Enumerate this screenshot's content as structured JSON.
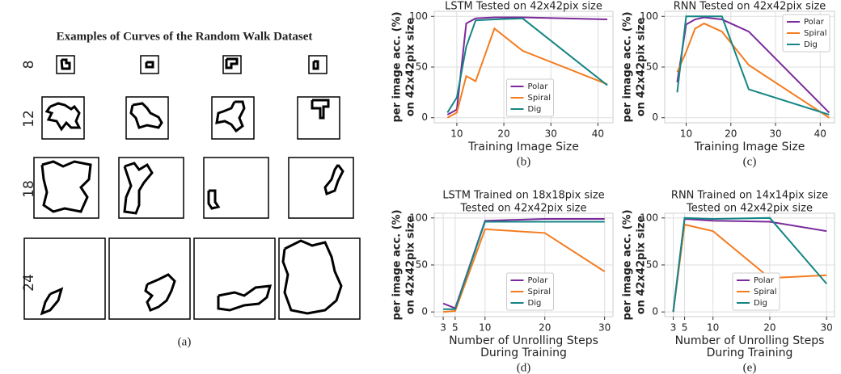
{
  "panel_a": {
    "title": "Examples of Curves of the Random Walk Dataset",
    "rows": [
      "8",
      "12",
      "18",
      "24"
    ],
    "caption": "(a)"
  },
  "chart_data": [
    {
      "type": "line",
      "title": [
        "LSTM Tested on 42x42pix size"
      ],
      "xlabel": [
        "Training Image Size"
      ],
      "ylabel": [
        "per image acc. (%)",
        "on 42x42pix size"
      ],
      "caption": "(b)",
      "x": [
        8,
        10,
        12,
        14,
        18,
        24,
        42
      ],
      "xlim": [
        5.2,
        43.2
      ],
      "xticks": [
        10,
        20,
        30,
        40
      ],
      "ylim": [
        -5,
        105
      ],
      "yticks": [
        0,
        50,
        100
      ],
      "grid": true,
      "legend": "lower center",
      "series": [
        {
          "name": "Polar",
          "color": "#7b2a9b",
          "values": [
            3,
            8,
            93,
            98,
            99,
            99,
            97
          ]
        },
        {
          "name": "Spiral",
          "color": "#f47c20",
          "values": [
            0,
            5,
            41,
            36,
            88,
            66,
            33
          ]
        },
        {
          "name": "Dig",
          "color": "#168585",
          "values": [
            5,
            20,
            70,
            96,
            97,
            98,
            32
          ]
        }
      ]
    },
    {
      "type": "line",
      "title": [
        "RNN Tested on 42x42pix size"
      ],
      "xlabel": [
        "Training Image Size"
      ],
      "ylabel": [
        "per image acc. (%)",
        "on 42x42pix size"
      ],
      "caption": "(c)",
      "x": [
        8,
        10,
        12,
        14,
        18,
        24,
        42
      ],
      "xlim": [
        5.2,
        43.2
      ],
      "xticks": [
        10,
        20,
        30,
        40
      ],
      "ylim": [
        -5,
        105
      ],
      "yticks": [
        0,
        50,
        100
      ],
      "grid": true,
      "legend": "upper right",
      "series": [
        {
          "name": "Polar",
          "color": "#7b2a9b",
          "values": [
            35,
            92,
            97,
            99,
            97,
            85,
            5
          ]
        },
        {
          "name": "Spiral",
          "color": "#f47c20",
          "values": [
            45,
            65,
            88,
            93,
            85,
            52,
            0
          ]
        },
        {
          "name": "Dig",
          "color": "#168585",
          "values": [
            25,
            100,
            100,
            100,
            100,
            28,
            3
          ]
        }
      ]
    },
    {
      "type": "line",
      "title": [
        "LSTM Trained on 18x18pix size",
        "Tested on 42x42pix size"
      ],
      "xlabel": [
        "Number of Unrolling Steps",
        "During Training"
      ],
      "ylabel": [
        "per image acc. (%)",
        "on 42x42pix size"
      ],
      "caption": "(d)",
      "x": [
        3,
        5,
        10,
        20,
        30
      ],
      "xlim": [
        1.5,
        31.4
      ],
      "xticks": [
        3,
        5,
        10,
        20,
        30
      ],
      "ylim": [
        -5,
        105
      ],
      "yticks": [
        0,
        50,
        100
      ],
      "grid": true,
      "legend": "lower center",
      "series": [
        {
          "name": "Polar",
          "color": "#7b2a9b",
          "values": [
            9,
            4,
            97,
            99,
            99
          ]
        },
        {
          "name": "Spiral",
          "color": "#f47c20",
          "values": [
            0,
            1,
            88,
            84,
            43
          ]
        },
        {
          "name": "Dig",
          "color": "#168585",
          "values": [
            3,
            3,
            96,
            96,
            96
          ]
        }
      ]
    },
    {
      "type": "line",
      "title": [
        "RNN Trained on 14x14pix size",
        "Tested on 42x42pix size"
      ],
      "xlabel": [
        "Number of Unrolling Steps",
        "During Training"
      ],
      "ylabel": [
        "per image acc. (%)",
        "on 42x42pix size"
      ],
      "caption": "(e)",
      "x": [
        3,
        5,
        10,
        20,
        30
      ],
      "xlim": [
        1.5,
        31.4
      ],
      "xticks": [
        3,
        5,
        10,
        20,
        30
      ],
      "ylim": [
        -5,
        105
      ],
      "yticks": [
        0,
        50,
        100
      ],
      "grid": true,
      "legend": "lower center",
      "series": [
        {
          "name": "Polar",
          "color": "#7b2a9b",
          "values": [
            0,
            99,
            97,
            96,
            86
          ]
        },
        {
          "name": "Spiral",
          "color": "#f47c20",
          "values": [
            0,
            93,
            86,
            36,
            39
          ]
        },
        {
          "name": "Dig",
          "color": "#168585",
          "values": [
            0,
            100,
            99,
            100,
            30
          ]
        }
      ]
    }
  ]
}
